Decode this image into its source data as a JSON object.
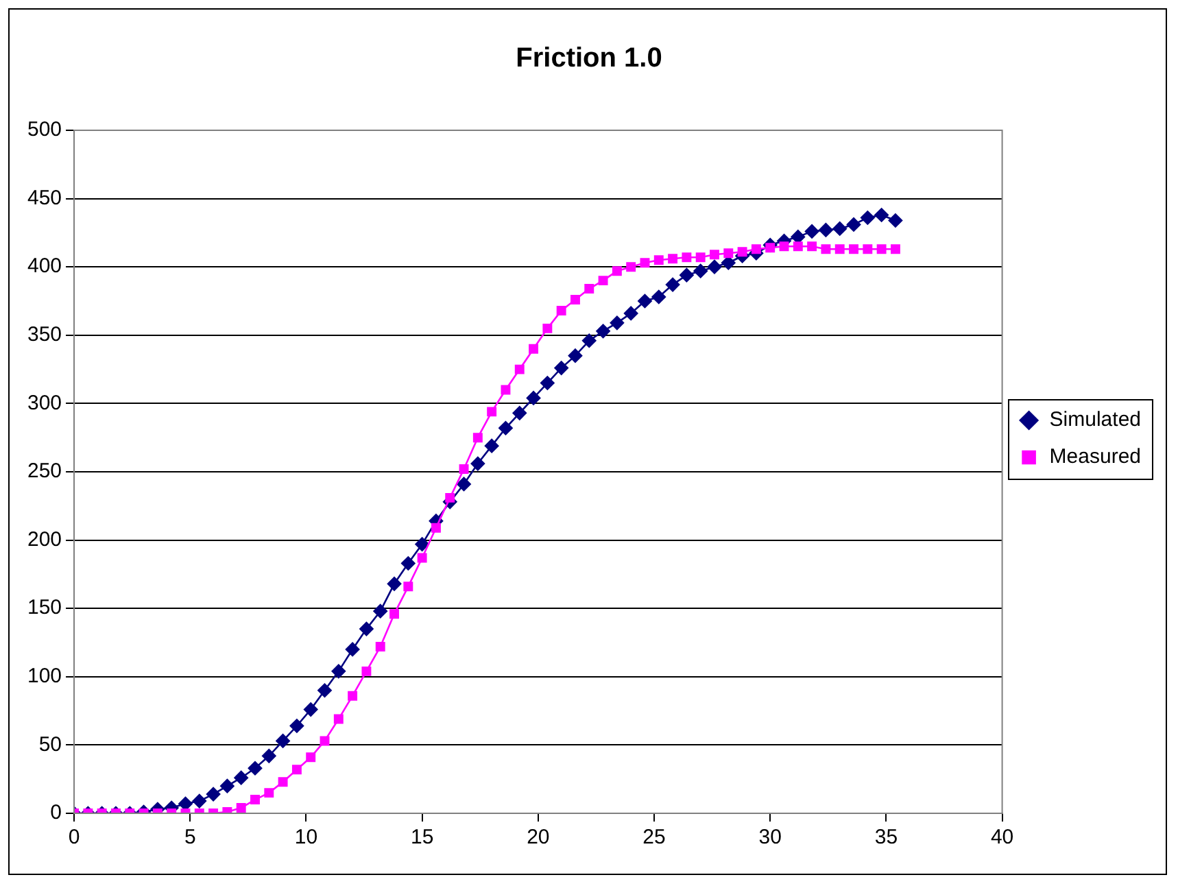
{
  "chart_data": {
    "type": "line",
    "title": "Friction 1.0",
    "x": [
      0,
      0.6,
      1.2,
      1.8,
      2.4,
      3,
      3.6,
      4.2,
      4.8,
      5.4,
      6,
      6.6,
      7.2,
      7.8,
      8.4,
      9,
      9.6,
      10.2,
      10.8,
      11.4,
      12,
      12.6,
      13.2,
      13.8,
      14.4,
      15,
      15.6,
      16.2,
      16.8,
      17.4,
      18,
      18.6,
      19.2,
      19.8,
      20.4,
      21,
      21.6,
      22.2,
      22.8,
      23.4,
      24,
      24.6,
      25.2,
      25.8,
      26.4,
      27,
      27.6,
      28.2,
      28.8,
      29.4,
      30,
      30.6,
      31.2,
      31.8,
      32.4,
      33,
      33.6,
      34.2,
      34.8,
      35.4
    ],
    "series": [
      {
        "name": "Simulated",
        "color": "#000080",
        "marker": "diamond",
        "values": [
          0,
          0,
          0,
          0,
          0,
          1,
          3,
          4,
          7,
          9,
          14,
          20,
          26,
          33,
          42,
          53,
          64,
          76,
          90,
          104,
          120,
          135,
          148,
          168,
          183,
          197,
          214,
          228,
          241,
          256,
          269,
          282,
          293,
          304,
          315,
          326,
          335,
          346,
          353,
          359,
          366,
          375,
          378,
          387,
          394,
          397,
          400,
          403,
          408,
          410,
          416,
          419,
          422,
          426,
          427,
          428,
          431,
          436,
          438,
          434
        ]
      },
      {
        "name": "Measured",
        "color": "#ff00ff",
        "marker": "square",
        "values": [
          0,
          0,
          0,
          0,
          0,
          0,
          0,
          0,
          0,
          0,
          0,
          1,
          4,
          10,
          15,
          23,
          32,
          41,
          53,
          69,
          86,
          104,
          122,
          146,
          166,
          187,
          209,
          231,
          252,
          275,
          294,
          310,
          325,
          340,
          355,
          368,
          376,
          384,
          390,
          397,
          400,
          403,
          405,
          406,
          407,
          407,
          409,
          410,
          411,
          413,
          414,
          415,
          415,
          415,
          413,
          413,
          413,
          413,
          413,
          413
        ]
      }
    ],
    "xlim": [
      0,
      40
    ],
    "xticks": [
      0,
      5,
      10,
      15,
      20,
      25,
      30,
      35,
      40
    ],
    "ylim": [
      0,
      500
    ],
    "yticks": [
      0,
      50,
      100,
      150,
      200,
      250,
      300,
      350,
      400,
      450,
      500
    ],
    "grid": "y",
    "legend": "right",
    "line_style": "solid"
  }
}
